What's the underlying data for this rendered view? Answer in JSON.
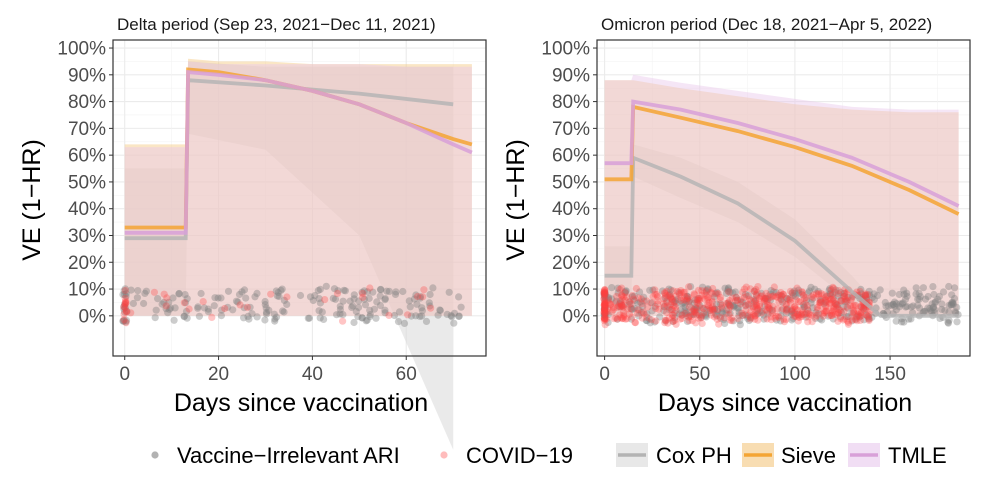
{
  "chart_data": {
    "type": "line",
    "ylabel": "VE (1−HR)",
    "xlabel": "Days since vaccination",
    "y_ticks": [
      "0%",
      "10%",
      "20%",
      "30%",
      "40%",
      "50%",
      "60%",
      "70%",
      "80%",
      "90%",
      "100%"
    ],
    "colors": {
      "cox": "#b3b3b3",
      "cox_fill": "#d9d9d9",
      "sieve": "#f4a534",
      "sieve_fill": "#f4c77e",
      "tmle": "#d8a0d8",
      "tmle_fill": "#e8c8ec",
      "ari_point": "#7f7f7f",
      "covid_point": "#ff4040",
      "panel_border": "#333333",
      "grid": "#ebebeb"
    },
    "legend": {
      "points": [
        {
          "key": "ari",
          "label": "Vaccine−Irrelevant ARI"
        },
        {
          "key": "covid",
          "label": "COVID−19"
        }
      ],
      "lines": [
        {
          "key": "cox",
          "label": "Cox PH"
        },
        {
          "key": "sieve",
          "label": "Sieve"
        },
        {
          "key": "tmle",
          "label": "TMLE"
        }
      ]
    },
    "panels": [
      {
        "title": "Delta period (Sep 23, 2021−Dec 11, 2021)",
        "xlim": [
          -2.5,
          77
        ],
        "ylim": [
          -0.15,
          1.03
        ],
        "x_ticks": [
          0,
          20,
          40,
          60
        ],
        "series": [
          {
            "key": "cox",
            "name": "Cox PH",
            "x": [
              0,
              13,
              13.5,
              30,
              50,
              70
            ],
            "y": [
              0.29,
              0.29,
              0.88,
              0.86,
              0.83,
              0.79
            ],
            "lower": [
              0.0,
              0.0,
              0.68,
              0.62,
              0.3,
              -0.5
            ],
            "upper": [
              0.55,
              0.55,
              0.95,
              0.93,
              0.93,
              0.93
            ]
          },
          {
            "key": "sieve",
            "name": "Sieve",
            "x": [
              0,
              13,
              13.5,
              20,
              30,
              40,
              50,
              60,
              70,
              74
            ],
            "y": [
              0.33,
              0.33,
              0.92,
              0.91,
              0.88,
              0.84,
              0.79,
              0.72,
              0.66,
              0.64
            ],
            "lower": [
              0.0,
              0.0,
              0.0,
              0.0,
              0.0,
              0.0,
              0.0,
              0.0,
              0.0,
              0.0
            ],
            "upper": [
              0.64,
              0.64,
              0.96,
              0.95,
              0.95,
              0.94,
              0.94,
              0.94,
              0.94,
              0.94
            ]
          },
          {
            "key": "tmle",
            "name": "TMLE",
            "x": [
              0,
              13,
              13.5,
              20,
              30,
              40,
              50,
              60,
              70,
              74
            ],
            "y": [
              0.31,
              0.31,
              0.91,
              0.9,
              0.88,
              0.84,
              0.79,
              0.72,
              0.64,
              0.61
            ],
            "lower": [
              0.0,
              0.0,
              0.0,
              0.0,
              0.0,
              0.0,
              0.0,
              0.0,
              0.0,
              0.0
            ],
            "upper": [
              0.63,
              0.63,
              0.95,
              0.94,
              0.94,
              0.94,
              0.94,
              0.93,
              0.93,
              0.93
            ]
          }
        ],
        "scatter": {
          "ari": {
            "n": 200,
            "x_range": [
              0,
              72
            ],
            "y_range": [
              -0.02,
              0.1
            ],
            "n_at_zero": 14
          },
          "covid": {
            "n": 40,
            "x_range": [
              0,
              70
            ],
            "y_range": [
              -0.02,
              0.1
            ],
            "n_at_zero": 14
          }
        }
      },
      {
        "title": "Omicron period (Dec 18, 2021−Apr 5, 2022)",
        "xlim": [
          -4,
          192
        ],
        "ylim": [
          -0.15,
          1.03
        ],
        "x_ticks": [
          0,
          50,
          100,
          150
        ],
        "series": [
          {
            "key": "cox",
            "name": "Cox PH",
            "x": [
              0,
              14,
              15,
              40,
              70,
              100,
              130,
              145,
              186
            ],
            "y": [
              0.15,
              0.15,
              0.59,
              0.52,
              0.42,
              0.28,
              0.09,
              0.0,
              0.0
            ],
            "lower": [
              0.0,
              0.0,
              0.52,
              0.44,
              0.35,
              0.22,
              0.05,
              0.0,
              0.0
            ],
            "upper": [
              0.26,
              0.26,
              0.64,
              0.59,
              0.5,
              0.36,
              0.15,
              0.03,
              0.03
            ]
          },
          {
            "key": "sieve",
            "name": "Sieve",
            "x": [
              0,
              14,
              15,
              40,
              70,
              100,
              130,
              160,
              186
            ],
            "y": [
              0.51,
              0.51,
              0.78,
              0.74,
              0.69,
              0.63,
              0.56,
              0.47,
              0.38
            ],
            "lower": [
              0.0,
              0.0,
              0.0,
              0.0,
              0.0,
              0.0,
              0.0,
              0.0,
              0.0
            ],
            "upper": [
              0.88,
              0.88,
              0.88,
              0.85,
              0.82,
              0.79,
              0.77,
              0.76,
              0.76
            ]
          },
          {
            "key": "tmle",
            "name": "TMLE",
            "x": [
              0,
              14,
              15,
              40,
              70,
              100,
              130,
              160,
              186
            ],
            "y": [
              0.57,
              0.57,
              0.8,
              0.77,
              0.72,
              0.66,
              0.59,
              0.5,
              0.41
            ],
            "lower": [
              0.0,
              0.0,
              0.0,
              0.0,
              0.0,
              0.0,
              0.0,
              0.0,
              0.0
            ],
            "upper": [
              0.88,
              0.88,
              0.9,
              0.87,
              0.84,
              0.81,
              0.78,
              0.77,
              0.77
            ]
          }
        ],
        "scatter": {
          "ari": {
            "n": 420,
            "x_range": [
              0,
              186
            ],
            "y_range": [
              -0.02,
              0.1
            ],
            "n_at_zero": 20
          },
          "covid": {
            "n": 520,
            "x_range": [
              0,
              140
            ],
            "y_range": [
              -0.02,
              0.1
            ],
            "n_at_zero": 40
          }
        }
      }
    ]
  }
}
